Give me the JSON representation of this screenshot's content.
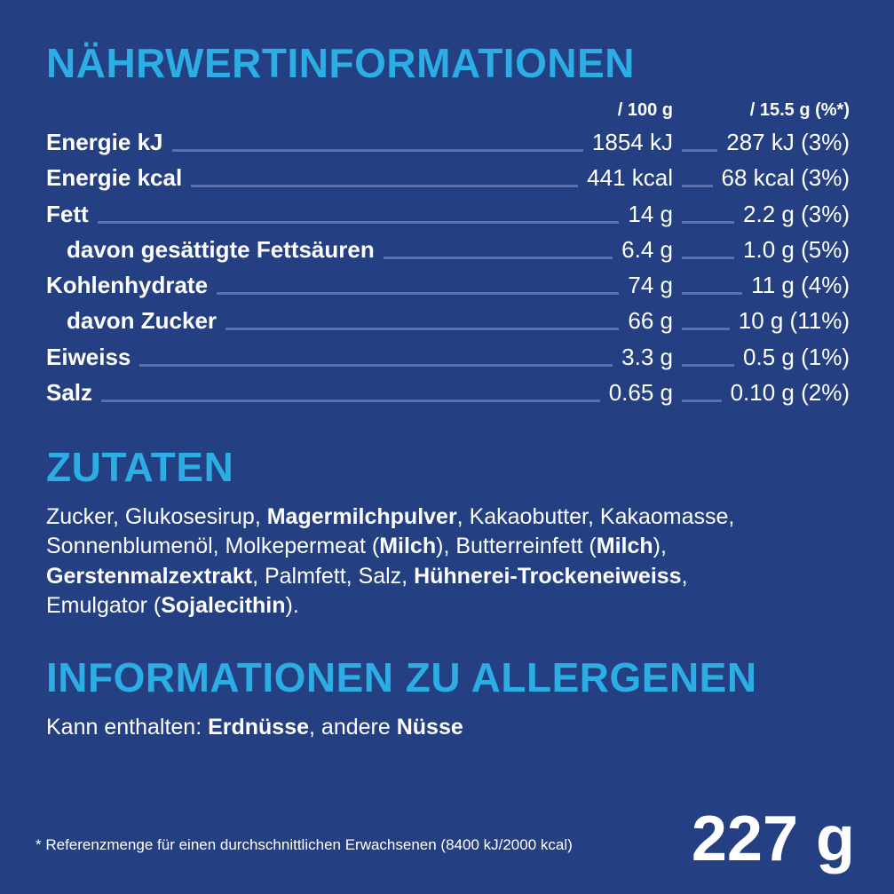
{
  "colors": {
    "background": "#243F82",
    "heading": "#2CADE4",
    "text": "#FFFFFF",
    "leader_line": "#5C71AC"
  },
  "nutrition": {
    "title": "NÄHRWERTINFORMATIONEN",
    "columns": {
      "per100": "/ 100 g",
      "portion": "/ 15.5 g (%*)"
    },
    "rows": [
      {
        "label": "Energie kJ",
        "indent": false,
        "per100": "1854 kJ",
        "portion": "287 kJ (3%)"
      },
      {
        "label": "Energie kcal",
        "indent": false,
        "per100": "441 kcal",
        "portion": "68 kcal (3%)"
      },
      {
        "label": "Fett",
        "indent": false,
        "per100": "14 g",
        "portion": "2.2 g (3%)"
      },
      {
        "label": "davon gesättigte Fettsäuren",
        "indent": true,
        "per100": "6.4 g",
        "portion": "1.0 g (5%)"
      },
      {
        "label": "Kohlenhydrate",
        "indent": false,
        "per100": "74 g",
        "portion": "11 g (4%)"
      },
      {
        "label": "davon Zucker",
        "indent": true,
        "per100": "66 g",
        "portion": "10 g (11%)"
      },
      {
        "label": "Eiweiss",
        "indent": false,
        "per100": "3.3 g",
        "portion": "0.5 g (1%)"
      },
      {
        "label": "Salz",
        "indent": false,
        "per100": "0.65 g",
        "portion": "0.10 g (2%)"
      }
    ]
  },
  "ingredients": {
    "title": "ZUTATEN",
    "lines": [
      [
        {
          "text": "Zucker, Glukosesirup, ",
          "bold": false
        },
        {
          "text": "Magermilchpulver",
          "bold": true
        },
        {
          "text": ", Kakaobutter, Kakaomasse,",
          "bold": false
        }
      ],
      [
        {
          "text": "Sonnenblumenöl, Molkepermeat (",
          "bold": false
        },
        {
          "text": "Milch",
          "bold": true
        },
        {
          "text": "), Butterreinfett (",
          "bold": false
        },
        {
          "text": "Milch",
          "bold": true
        },
        {
          "text": "),",
          "bold": false
        }
      ],
      [
        {
          "text": "Gerstenmalzextrakt",
          "bold": true
        },
        {
          "text": ", Palmfett, Salz, ",
          "bold": false
        },
        {
          "text": "Hühnerei-Trockeneiweiss",
          "bold": true
        },
        {
          "text": ",",
          "bold": false
        }
      ],
      [
        {
          "text": "Emulgator (",
          "bold": false
        },
        {
          "text": "Sojalecithin",
          "bold": true
        },
        {
          "text": ").",
          "bold": false
        }
      ]
    ]
  },
  "allergens": {
    "title": "INFORMATIONEN ZU ALLERGENEN",
    "line": [
      {
        "text": "Kann enthalten: ",
        "bold": false
      },
      {
        "text": "Erdnüsse",
        "bold": true
      },
      {
        "text": ", andere ",
        "bold": false
      },
      {
        "text": "Nüsse",
        "bold": true
      }
    ]
  },
  "footer": {
    "note": "* Referenzmenge für einen durchschnittlichen Erwachsenen (8400 kJ/2000 kcal)",
    "net_weight": "227 g"
  }
}
